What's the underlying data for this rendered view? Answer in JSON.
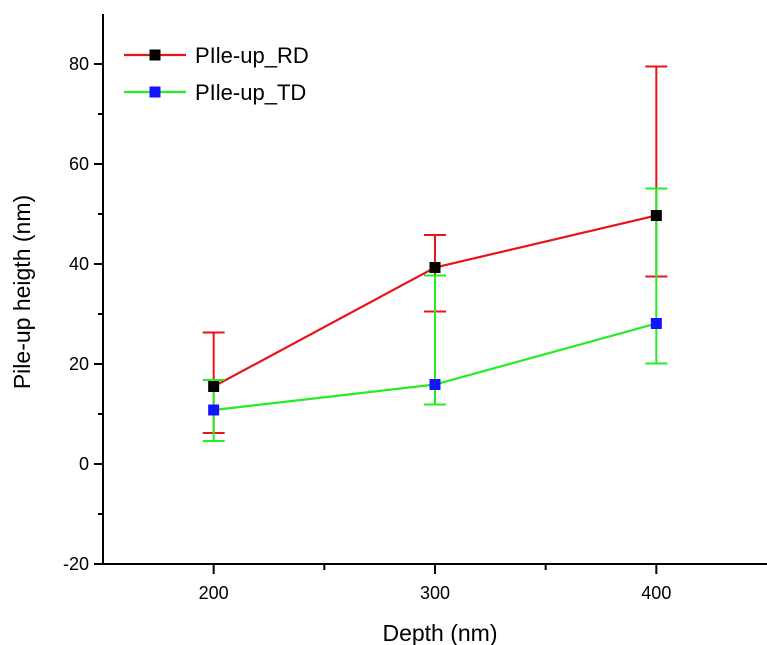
{
  "chart_data": {
    "type": "line",
    "xlabel": "Depth (nm)",
    "ylabel": "Pile-up heigth (nm)",
    "x": [
      200,
      300,
      400
    ],
    "xlim": [
      150,
      450
    ],
    "ylim": [
      -20,
      90
    ],
    "xticks": [
      200,
      300,
      400
    ],
    "yticks": [
      -20,
      0,
      20,
      40,
      60,
      80
    ],
    "xtick_labels": [
      "200",
      "300",
      "400"
    ],
    "ytick_labels": [
      "-20",
      "0",
      "20",
      "40",
      "60",
      "80"
    ],
    "grid": false,
    "legend_position": "top-left",
    "series": [
      {
        "name": "PIle-up_RD",
        "line_color": "#e8141c",
        "marker_color": "#000000",
        "error_color": "#e8141c",
        "values": [
          15.5,
          39.3,
          49.7
        ],
        "err_low": [
          6.2,
          30.5,
          37.5
        ],
        "err_high": [
          26.3,
          45.8,
          79.5
        ]
      },
      {
        "name": "PIle-up_TD",
        "line_color": "#22ee22",
        "marker_color": "#1414ff",
        "error_color": "#22ee22",
        "values": [
          10.8,
          15.9,
          28.1
        ],
        "err_low": [
          4.6,
          11.9,
          20.1
        ],
        "err_high": [
          16.8,
          37.7,
          55.1
        ]
      }
    ]
  }
}
